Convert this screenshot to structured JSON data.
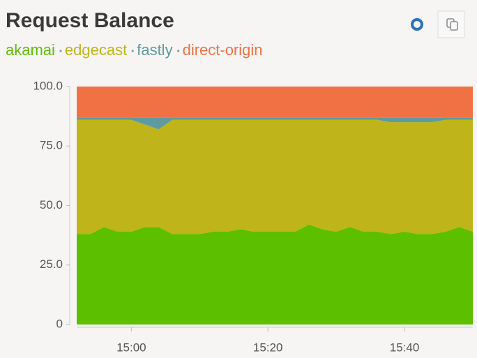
{
  "chart_data": {
    "type": "stacked-area",
    "title": "Request Balance",
    "categories": [
      null,
      null,
      null,
      null,
      "15:00",
      null,
      null,
      null,
      null,
      null,
      null,
      null,
      null,
      null,
      "15:20",
      null,
      null,
      null,
      null,
      null,
      null,
      null,
      null,
      null,
      "15:40",
      null,
      null,
      null,
      null,
      null
    ],
    "series": [
      {
        "name": "akamai",
        "color": "#5cbf00",
        "values": [
          38,
          38,
          41,
          39,
          39,
          41,
          41,
          38,
          38,
          38,
          39,
          39,
          40,
          39,
          39,
          39,
          39,
          42,
          40,
          39,
          41,
          39,
          39,
          38,
          39,
          38,
          38,
          39,
          41,
          39
        ]
      },
      {
        "name": "edgecast",
        "color": "#bfb419",
        "values": [
          48,
          48,
          45,
          47,
          47,
          43,
          41,
          48,
          48,
          48,
          47,
          47,
          46,
          47,
          47,
          47,
          47,
          44,
          46,
          47,
          45,
          47,
          47,
          47,
          46,
          47,
          47,
          47,
          45,
          47
        ]
      },
      {
        "name": "fastly",
        "color": "#5f9aa0",
        "values": [
          1,
          1,
          1,
          1,
          1,
          3,
          5,
          1,
          1,
          1,
          1,
          1,
          1,
          1,
          1,
          1,
          1,
          1,
          1,
          1,
          1,
          1,
          1,
          2,
          2,
          2,
          2,
          1,
          1,
          1
        ]
      },
      {
        "name": "direct-origin",
        "color": "#f07244",
        "values": [
          13,
          13,
          13,
          13,
          13,
          13,
          13,
          13,
          13,
          13,
          13,
          13,
          13,
          13,
          13,
          13,
          13,
          13,
          13,
          13,
          13,
          13,
          13,
          13,
          13,
          13,
          13,
          13,
          13,
          13
        ]
      }
    ],
    "ylim": [
      0,
      100
    ],
    "yticks": [
      0,
      {
        "value": 25,
        "label": "25.0"
      },
      {
        "value": 50,
        "label": "50.0"
      },
      {
        "value": 75,
        "label": "75.0"
      },
      {
        "value": 100,
        "label": "100.0"
      }
    ]
  }
}
